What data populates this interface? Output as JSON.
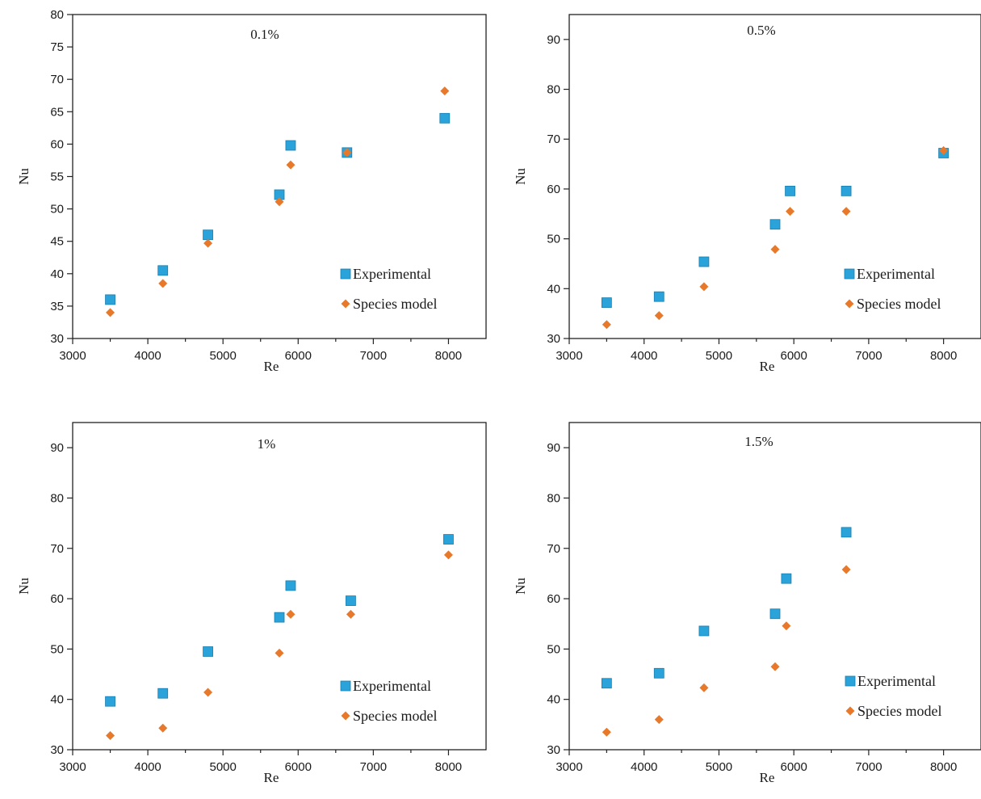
{
  "chart_data": [
    {
      "type": "scatter",
      "title": "0.1%",
      "xlabel": "Re",
      "ylabel": "Nu",
      "xlim": [
        3000,
        8500
      ],
      "ylim": [
        30,
        80
      ],
      "xticks": [
        "3000",
        "4000",
        "5000",
        "6000",
        "7000",
        "8000"
      ],
      "yticks": [
        "30",
        "35",
        "40",
        "45",
        "50",
        "55",
        "60",
        "65",
        "70",
        "75",
        "80"
      ],
      "grid": false,
      "legend": "bottom-right",
      "series": [
        {
          "name": "Experimental",
          "marker": "square",
          "color": "#29a3da",
          "x": [
            3500,
            4200,
            4800,
            5750,
            5900,
            6650,
            7950
          ],
          "y": [
            36.0,
            40.5,
            46.0,
            52.2,
            59.8,
            58.7,
            64.0
          ]
        },
        {
          "name": "Species model",
          "marker": "diamond",
          "color": "#e8792a",
          "x": [
            3500,
            4200,
            4800,
            5750,
            5900,
            6650,
            7950
          ],
          "y": [
            34.0,
            38.5,
            44.7,
            51.1,
            56.8,
            58.7,
            68.2
          ]
        }
      ]
    },
    {
      "type": "scatter",
      "title": "0.5%",
      "xlabel": "Re",
      "ylabel": "Nu",
      "xlim": [
        3000,
        8500
      ],
      "ylim": [
        30,
        95
      ],
      "xticks": [
        "3000",
        "4000",
        "5000",
        "6000",
        "7000",
        "8000"
      ],
      "yticks": [
        "30",
        "40",
        "50",
        "60",
        "70",
        "80",
        "90"
      ],
      "grid": false,
      "legend": "bottom-right",
      "series": [
        {
          "name": "Experimental",
          "marker": "square",
          "color": "#29a3da",
          "x": [
            3500,
            4200,
            4800,
            5750,
            5950,
            6700,
            8000
          ],
          "y": [
            37.2,
            38.4,
            45.4,
            52.9,
            59.6,
            59.6,
            67.2
          ]
        },
        {
          "name": "Species model",
          "marker": "diamond",
          "color": "#e8792a",
          "x": [
            3500,
            4200,
            4800,
            5750,
            5950,
            6700,
            8000
          ],
          "y": [
            32.8,
            34.6,
            40.4,
            47.9,
            55.5,
            55.5,
            67.7
          ]
        }
      ]
    },
    {
      "type": "scatter",
      "title": "1%",
      "xlabel": "Re",
      "ylabel": "Nu",
      "xlim": [
        3000,
        8500
      ],
      "ylim": [
        30,
        95
      ],
      "xticks": [
        "3000",
        "4000",
        "5000",
        "6000",
        "7000",
        "8000"
      ],
      "yticks": [
        "30",
        "40",
        "50",
        "60",
        "70",
        "80",
        "90"
      ],
      "grid": false,
      "legend": "bottom-right",
      "series": [
        {
          "name": "Experimental",
          "marker": "square",
          "color": "#29a3da",
          "x": [
            3500,
            4200,
            4800,
            5750,
            5900,
            6700,
            8000
          ],
          "y": [
            39.6,
            41.2,
            49.5,
            56.3,
            62.6,
            59.6,
            71.8
          ]
        },
        {
          "name": "Species model",
          "marker": "diamond",
          "color": "#e8792a",
          "x": [
            3500,
            4200,
            4800,
            5750,
            5900,
            6700,
            8000
          ],
          "y": [
            32.8,
            34.3,
            41.4,
            49.2,
            56.9,
            56.9,
            68.7
          ]
        }
      ]
    },
    {
      "type": "scatter",
      "title": "1.5%",
      "xlabel": "Re",
      "ylabel": "Nu",
      "xlim": [
        3000,
        8500
      ],
      "ylim": [
        30,
        95
      ],
      "xticks": [
        "3000",
        "4000",
        "5000",
        "6000",
        "7000",
        "8000"
      ],
      "yticks": [
        "30",
        "40",
        "50",
        "60",
        "70",
        "80",
        "90"
      ],
      "grid": false,
      "legend": "bottom-right",
      "series": [
        {
          "name": "Experimental",
          "marker": "square",
          "color": "#29a3da",
          "x": [
            3500,
            4200,
            4800,
            5750,
            5900,
            6700
          ],
          "y": [
            43.2,
            45.2,
            53.6,
            57.0,
            64.0,
            73.2
          ]
        },
        {
          "name": "Species model",
          "marker": "diamond",
          "color": "#e8792a",
          "x": [
            3500,
            4200,
            4800,
            5750,
            5900,
            6700
          ],
          "y": [
            33.5,
            36.0,
            42.3,
            46.5,
            54.6,
            65.8
          ]
        }
      ]
    }
  ]
}
